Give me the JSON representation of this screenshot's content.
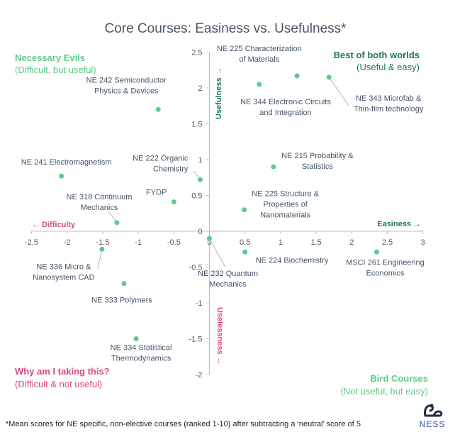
{
  "chart_data": {
    "type": "scatter",
    "title": "Core Courses: Easiness vs. Usefulness*",
    "xlim": [
      -2.5,
      3
    ],
    "ylim": [
      -2,
      2.5
    ],
    "x_ticks": [
      -2.5,
      -2,
      -1.5,
      -1,
      -0.5,
      0,
      0.5,
      1,
      1.5,
      2,
      2.5,
      3
    ],
    "y_ticks": [
      -2,
      -1.5,
      -1,
      -0.5,
      0,
      0.5,
      1,
      1.5,
      2,
      2.5
    ],
    "x_tick_labels": [
      "-2.5",
      "-2",
      "-1.5",
      "-1",
      "-0.5",
      "0",
      "0.5",
      "1",
      "1.5",
      "2",
      "2.5",
      "3"
    ],
    "y_tick_labels": [
      "-2",
      "-1.5",
      "-1",
      "-0.5",
      "0",
      "0.5",
      "1",
      "1.5",
      "2",
      "2.5"
    ],
    "grid": false,
    "point_color": "#5ccb87",
    "points": [
      {
        "label": "NE 225 Characterization of Materials",
        "x": 0.7,
        "y": 2.05
      },
      {
        "label": "NE 344 Electronic Circuits and Integration",
        "x": 1.23,
        "y": 2.17
      },
      {
        "label": "NE 343 Microfab & Thin-film technology",
        "x": 1.68,
        "y": 2.15
      },
      {
        "label": "NE 242 Semiconductor Physics & Devices",
        "x": -0.72,
        "y": 1.7
      },
      {
        "label": "NE 241 Electromagnetism",
        "x": -2.08,
        "y": 0.77
      },
      {
        "label": "NE 222 Organic Chemistry",
        "x": -0.13,
        "y": 0.72
      },
      {
        "label": "NE 215 Probability & Statistics",
        "x": 0.9,
        "y": 0.9
      },
      {
        "label": "FYDP",
        "x": -0.5,
        "y": 0.41
      },
      {
        "label": "NE 318 Continuum Mechanics",
        "x": -1.3,
        "y": 0.12
      },
      {
        "label": "NE 225 Structure & Properties of Nanomaterials",
        "x": 0.49,
        "y": 0.3
      },
      {
        "label": "NE 232 Quantum Mechanics",
        "x": 0.0,
        "y": -0.1
      },
      {
        "label": "NE 336 Micro & Nanosystem CAD",
        "x": -1.51,
        "y": -0.25
      },
      {
        "label": "NE 224 Biochemistry",
        "x": 0.5,
        "y": -0.29
      },
      {
        "label": "MSCI 261 Engineering Economics",
        "x": 2.35,
        "y": -0.29
      },
      {
        "label": "NE 333 Polymers",
        "x": -1.2,
        "y": -0.73
      },
      {
        "label": "NE 334 Statistical Thermodynamics",
        "x": -1.03,
        "y": -1.5
      }
    ],
    "annotations": {
      "usefulness": "Usefulness →",
      "uselessness": "Uselessness →",
      "easiness": "Easiness →",
      "difficulty": "← Difficulty"
    },
    "quadrants": {
      "top_left": {
        "title": "Necessary Evils",
        "subtitle": "(Difficult, but useful)",
        "color": "#5ccb87"
      },
      "top_right": {
        "title": "Best of both worlds",
        "subtitle": "(Useful & easy)",
        "color": "#1e7a4e"
      },
      "bottom_left": {
        "title": "Why am I taking this?",
        "subtitle": "(Difficult & not useful)",
        "color": "#d64a84"
      },
      "bottom_right": {
        "title": "Bird Courses",
        "subtitle": "(Not useful, but easy)",
        "color": "#5ccb87"
      }
    },
    "colors": {
      "usefulness": "#1e7a4e",
      "uselessness": "#d64a84",
      "easiness": "#1e7a4e",
      "difficulty": "#d64a84",
      "axis": "#bfbfbf"
    }
  },
  "footnote": "*Mean scores for NE specific, non-elective courses (ranked 1-10) after subtracting a ‘neutral’ score of 5",
  "logo": {
    "text": "NESS",
    "icon": "ness-logo-icon"
  }
}
